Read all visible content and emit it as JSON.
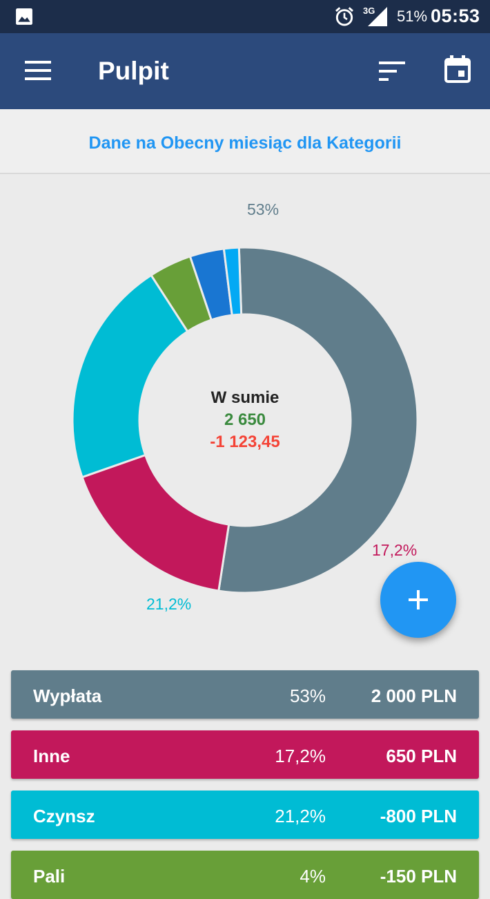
{
  "status_bar": {
    "network": "3G",
    "battery": "51%",
    "time": "05:53",
    "icons": [
      "gallery-icon",
      "alarm-icon",
      "signal-icon"
    ]
  },
  "app_bar": {
    "title": "Pulpit",
    "icons": [
      "menu-icon",
      "sort-icon",
      "calendar-icon"
    ]
  },
  "subtitle": "Dane na Obecny miesiąc dla Kategorii",
  "summary": {
    "label": "W sumie",
    "income": "2 650",
    "expense": "-1 123,45"
  },
  "chart_data": {
    "type": "pie",
    "title": "",
    "categories": [
      "Wypłata",
      "Inne",
      "Czynsz",
      "",
      "",
      ""
    ],
    "values": [
      53,
      17.2,
      21.2,
      4,
      3.2,
      1.4
    ],
    "colors": [
      "#607d8b",
      "#c2185b",
      "#00bcd4",
      "#689f38",
      "#1976d2",
      "#03a9f4"
    ],
    "labels_shown": [
      "53%",
      "17,2%",
      "21,2%"
    ],
    "donut": true
  },
  "fab": {
    "icon": "plus-icon"
  },
  "categories": [
    {
      "name": "Wypłata",
      "percent": "53%",
      "amount": "2 000 PLN",
      "color": "#607d8b"
    },
    {
      "name": "Inne",
      "percent": "17,2%",
      "amount": "650 PLN",
      "color": "#c2185b"
    },
    {
      "name": "Czynsz",
      "percent": "21,2%",
      "amount": "-800 PLN",
      "color": "#00bcd4"
    },
    {
      "name": "Pali",
      "percent": "4%",
      "amount": "-150 PLN",
      "color": "#689f38"
    }
  ]
}
